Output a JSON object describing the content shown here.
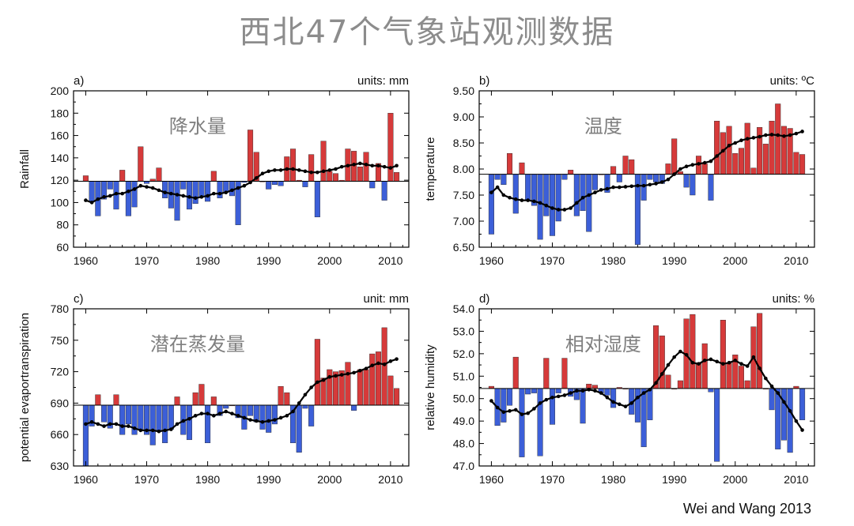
{
  "title": "西北47个气象站观测数据",
  "credit": "Wei and Wang 2013",
  "colors": {
    "positive": "#d63a3a",
    "negative": "#3c5fd8",
    "line": "#000000",
    "frame": "#000000",
    "watermark": "#7f7f7f"
  },
  "chart_data": [
    {
      "type": "bar",
      "panel": "a)",
      "units": "units: mm",
      "ylabel": "Rainfall",
      "watermark": "降水量",
      "ylim": [
        60,
        200
      ],
      "yticks": [
        60,
        80,
        100,
        120,
        140,
        160,
        180,
        200
      ],
      "ytick_labels": [
        "60",
        "80",
        "100",
        "120",
        "140",
        "160",
        "180",
        "200"
      ],
      "xlim": [
        1958,
        2013
      ],
      "xticks": [
        1960,
        1970,
        1980,
        1990,
        2000,
        2010
      ],
      "baseline": 119,
      "years": [
        1960,
        1961,
        1962,
        1963,
        1964,
        1965,
        1966,
        1967,
        1968,
        1969,
        1970,
        1971,
        1972,
        1973,
        1974,
        1975,
        1976,
        1977,
        1978,
        1979,
        1980,
        1981,
        1982,
        1983,
        1984,
        1985,
        1986,
        1987,
        1988,
        1989,
        1990,
        1991,
        1992,
        1993,
        1994,
        1995,
        1996,
        1997,
        1998,
        1999,
        2000,
        2001,
        2002,
        2003,
        2004,
        2005,
        2006,
        2007,
        2008,
        2009,
        2010,
        2011
      ],
      "values": [
        124,
        101,
        88,
        103,
        112,
        94,
        129,
        88,
        96,
        150,
        117,
        121,
        131,
        104,
        95,
        84,
        112,
        94,
        99,
        105,
        101,
        128,
        104,
        109,
        106,
        80,
        118,
        165,
        145,
        119,
        112,
        116,
        115,
        141,
        148,
        120,
        114,
        143,
        87,
        155,
        128,
        126,
        120,
        148,
        146,
        132,
        145,
        113,
        135,
        102,
        180,
        127
      ],
      "trend": [
        102,
        100,
        103,
        105,
        106,
        108,
        108,
        110,
        112,
        115,
        114,
        113,
        111,
        109,
        108,
        107,
        106,
        105,
        104,
        105,
        106,
        108,
        108,
        109,
        111,
        113,
        115,
        118,
        122,
        126,
        128,
        129,
        129,
        130,
        130,
        129,
        128,
        127,
        127,
        128,
        129,
        130,
        132,
        133,
        134,
        135,
        134,
        133,
        133,
        132,
        131,
        133
      ]
    },
    {
      "type": "bar",
      "panel": "b)",
      "units": "units: ºC",
      "ylabel": "temperature",
      "watermark": "温度",
      "ylim": [
        6.5,
        9.5
      ],
      "yticks": [
        6.5,
        7.0,
        7.5,
        8.0,
        8.5,
        9.0,
        9.5
      ],
      "ytick_labels": [
        "6.50",
        "7.00",
        "7.50",
        "8.00",
        "8.50",
        "9.00",
        "9.50"
      ],
      "xlim": [
        1958,
        2013
      ],
      "xticks": [
        1960,
        1970,
        1980,
        1990,
        2000,
        2010
      ],
      "baseline": 7.9,
      "years": [
        1960,
        1961,
        1962,
        1963,
        1964,
        1965,
        1966,
        1967,
        1968,
        1969,
        1970,
        1971,
        1972,
        1973,
        1974,
        1975,
        1976,
        1977,
        1978,
        1979,
        1980,
        1981,
        1982,
        1983,
        1984,
        1985,
        1986,
        1987,
        1988,
        1989,
        1990,
        1991,
        1992,
        1993,
        1994,
        1995,
        1996,
        1997,
        1998,
        1999,
        2000,
        2001,
        2002,
        2003,
        2004,
        2005,
        2006,
        2007,
        2008,
        2009,
        2010,
        2011
      ],
      "values": [
        6.75,
        7.8,
        7.7,
        8.3,
        7.15,
        8.12,
        7.4,
        7.3,
        6.65,
        7.1,
        6.72,
        7.0,
        7.8,
        7.98,
        7.1,
        7.2,
        6.8,
        7.6,
        7.9,
        7.55,
        8.05,
        7.75,
        8.25,
        8.18,
        6.55,
        7.4,
        7.8,
        7.75,
        7.72,
        8.1,
        8.58,
        7.95,
        7.65,
        7.5,
        8.25,
        8.1,
        7.4,
        8.92,
        8.7,
        8.82,
        8.3,
        8.4,
        8.88,
        8.02,
        8.8,
        8.48,
        8.92,
        9.25,
        8.82,
        8.78,
        8.32,
        8.28
      ],
      "trend": [
        7.55,
        7.65,
        7.5,
        7.45,
        7.42,
        7.4,
        7.4,
        7.38,
        7.35,
        7.3,
        7.25,
        7.22,
        7.22,
        7.25,
        7.35,
        7.45,
        7.5,
        7.55,
        7.6,
        7.62,
        7.65,
        7.65,
        7.66,
        7.67,
        7.68,
        7.68,
        7.7,
        7.72,
        7.75,
        7.8,
        7.9,
        8.0,
        8.05,
        8.08,
        8.1,
        8.12,
        8.15,
        8.25,
        8.35,
        8.45,
        8.5,
        8.55,
        8.58,
        8.6,
        8.62,
        8.65,
        8.66,
        8.65,
        8.63,
        8.65,
        8.68,
        8.72
      ]
    },
    {
      "type": "bar",
      "panel": "c)",
      "units": "unit: mm",
      "ylabel": "potential evaportranspiration",
      "watermark": "潜在蒸发量",
      "ylim": [
        630,
        780
      ],
      "yticks": [
        630,
        660,
        690,
        720,
        750,
        780
      ],
      "ytick_labels": [
        "630",
        "660",
        "690",
        "720",
        "750",
        "780"
      ],
      "xlim": [
        1958,
        2013
      ],
      "xticks": [
        1960,
        1970,
        1980,
        1990,
        2000,
        2010
      ],
      "baseline": 688,
      "years": [
        1960,
        1961,
        1962,
        1963,
        1964,
        1965,
        1966,
        1967,
        1968,
        1969,
        1970,
        1971,
        1972,
        1973,
        1974,
        1975,
        1976,
        1977,
        1978,
        1979,
        1980,
        1981,
        1982,
        1983,
        1984,
        1985,
        1986,
        1987,
        1988,
        1989,
        1990,
        1991,
        1992,
        1993,
        1994,
        1995,
        1996,
        1997,
        1998,
        1999,
        2000,
        2001,
        2002,
        2003,
        2004,
        2005,
        2006,
        2007,
        2008,
        2009,
        2010,
        2011
      ],
      "values": [
        630,
        668,
        698,
        672,
        666,
        698,
        660,
        670,
        660,
        665,
        660,
        650,
        664,
        652,
        665,
        696,
        660,
        655,
        700,
        708,
        652,
        696,
        678,
        685,
        688,
        676,
        665,
        678,
        672,
        665,
        662,
        670,
        706,
        700,
        652,
        643,
        685,
        668,
        751,
        714,
        722,
        720,
        721,
        729,
        683,
        722,
        722,
        737,
        739,
        762,
        716,
        704
      ],
      "trend": [
        670,
        672,
        670,
        668,
        670,
        670,
        668,
        668,
        666,
        664,
        664,
        664,
        663,
        664,
        665,
        670,
        673,
        675,
        678,
        680,
        680,
        678,
        680,
        682,
        680,
        678,
        676,
        674,
        673,
        672,
        673,
        674,
        676,
        678,
        682,
        690,
        698,
        705,
        710,
        712,
        715,
        716,
        717,
        718,
        719,
        721,
        723,
        726,
        728,
        727,
        730,
        732
      ]
    },
    {
      "type": "bar",
      "panel": "d)",
      "units": "units: %",
      "ylabel": "relative humidity",
      "watermark": "相对湿度",
      "ylim": [
        47.0,
        54.0
      ],
      "yticks": [
        47.0,
        48.0,
        49.0,
        50.0,
        51.0,
        52.0,
        53.0,
        54.0
      ],
      "ytick_labels": [
        "47.0",
        "48.0",
        "49.0",
        "50.0",
        "51.0",
        "52.0",
        "53.0",
        "54.0"
      ],
      "xlim": [
        1958,
        2013
      ],
      "xticks": [
        1960,
        1970,
        1980,
        1990,
        2000,
        2010
      ],
      "baseline": 50.45,
      "years": [
        1960,
        1961,
        1962,
        1963,
        1964,
        1965,
        1966,
        1967,
        1968,
        1969,
        1970,
        1971,
        1972,
        1973,
        1974,
        1975,
        1976,
        1977,
        1978,
        1979,
        1980,
        1981,
        1982,
        1983,
        1984,
        1985,
        1986,
        1987,
        1988,
        1989,
        1990,
        1991,
        1992,
        1993,
        1994,
        1995,
        1996,
        1997,
        1998,
        1999,
        2000,
        2001,
        2002,
        2003,
        2004,
        2005,
        2006,
        2007,
        2008,
        2009,
        2010,
        2011
      ],
      "values": [
        50.55,
        48.8,
        48.95,
        49.7,
        51.85,
        47.4,
        50.2,
        50.25,
        47.45,
        51.8,
        48.85,
        50.25,
        51.8,
        50.1,
        49.95,
        48.9,
        50.65,
        50.6,
        50.25,
        50.15,
        49.6,
        50.5,
        50.45,
        49.3,
        48.95,
        47.85,
        49.05,
        53.25,
        52.8,
        51.05,
        50.45,
        50.8,
        53.55,
        53.75,
        51.6,
        52.45,
        50.3,
        47.2,
        53.5,
        51.6,
        51.95,
        51.45,
        50.8,
        53.2,
        53.8,
        50.45,
        49.5,
        47.75,
        48.15,
        47.6,
        50.55,
        49.05
      ],
      "trend": [
        49.9,
        49.6,
        49.4,
        49.45,
        49.5,
        49.3,
        49.35,
        49.55,
        49.8,
        49.95,
        50.05,
        50.1,
        50.15,
        50.25,
        50.35,
        50.35,
        50.4,
        50.35,
        50.25,
        50.05,
        49.85,
        49.75,
        49.65,
        49.8,
        50.05,
        50.25,
        50.4,
        50.7,
        51.1,
        51.5,
        51.85,
        52.1,
        51.95,
        51.6,
        51.55,
        51.7,
        51.75,
        51.65,
        51.55,
        51.6,
        51.7,
        51.55,
        51.45,
        51.85,
        51.35,
        50.9,
        50.55,
        50.25,
        49.85,
        49.45,
        49.0,
        48.6
      ]
    }
  ]
}
